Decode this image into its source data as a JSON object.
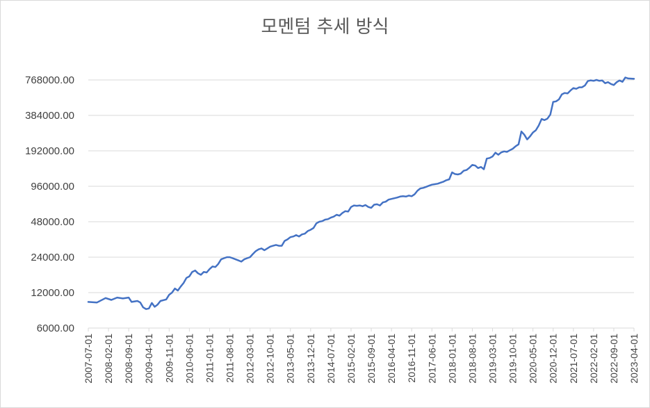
{
  "chart_data": {
    "type": "line",
    "title": "모멘텀 추세 방식",
    "y_scale": "log2",
    "ylim": [
      6000,
      900000
    ],
    "y_ticks": [
      {
        "value": 6000,
        "label": "6000.00"
      },
      {
        "value": 12000,
        "label": "12000.00"
      },
      {
        "value": 24000,
        "label": "24000.00"
      },
      {
        "value": 48000,
        "label": "48000.00"
      },
      {
        "value": 96000,
        "label": "96000.00"
      },
      {
        "value": 192000,
        "label": "192000.00"
      },
      {
        "value": 384000,
        "label": "384000.00"
      },
      {
        "value": 768000,
        "label": "768000.00"
      }
    ],
    "x_tick_labels": [
      "2007-07-01",
      "2008-02-01",
      "2008-09-01",
      "2009-04-01",
      "2009-11-01",
      "2010-06-01",
      "2011-01-01",
      "2011-08-01",
      "2012-03-01",
      "2012-10-01",
      "2013-05-01",
      "2013-12-01",
      "2014-07-01",
      "2015-02-01",
      "2015-09-01",
      "2016-04-01",
      "2016-11-01",
      "2017-06-01",
      "2018-01-01",
      "2018-08-01",
      "2019-03-01",
      "2019-10-01",
      "2020-05-01",
      "2020-12-01",
      "2021-07-01",
      "2022-02-01",
      "2022-09-01",
      "2023-04-01"
    ],
    "gridlines": true,
    "line_color": "#4472c4",
    "series": [
      {
        "points": [
          [
            "2007-07-01",
            10000
          ],
          [
            "2007-10-01",
            9900
          ],
          [
            "2008-01-01",
            10800
          ],
          [
            "2008-03-01",
            10400
          ],
          [
            "2008-05-01",
            10900
          ],
          [
            "2008-07-01",
            10700
          ],
          [
            "2008-09-01",
            10900
          ],
          [
            "2008-10-01",
            10000
          ],
          [
            "2008-12-01",
            10200
          ],
          [
            "2009-01-01",
            9900
          ],
          [
            "2009-02-01",
            9000
          ],
          [
            "2009-03-01",
            8700
          ],
          [
            "2009-04-01",
            8800
          ],
          [
            "2009-05-01",
            9800
          ],
          [
            "2009-06-01",
            9100
          ],
          [
            "2009-07-01",
            9500
          ],
          [
            "2009-08-01",
            10200
          ],
          [
            "2009-10-01",
            10500
          ],
          [
            "2009-11-01",
            11500
          ],
          [
            "2009-12-01",
            12000
          ],
          [
            "2010-01-01",
            13000
          ],
          [
            "2010-02-01",
            12500
          ],
          [
            "2010-03-01",
            13500
          ],
          [
            "2010-04-01",
            14500
          ],
          [
            "2010-05-01",
            16000
          ],
          [
            "2010-06-01",
            16500
          ],
          [
            "2010-07-01",
            18000
          ],
          [
            "2010-08-01",
            18500
          ],
          [
            "2010-09-01",
            17500
          ],
          [
            "2010-10-01",
            17000
          ],
          [
            "2010-11-01",
            18000
          ],
          [
            "2010-12-01",
            17800
          ],
          [
            "2011-01-01",
            19000
          ],
          [
            "2011-02-01",
            20000
          ],
          [
            "2011-03-01",
            19800
          ],
          [
            "2011-04-01",
            21000
          ],
          [
            "2011-05-01",
            23000
          ],
          [
            "2011-06-01",
            23500
          ],
          [
            "2011-07-01",
            24000
          ],
          [
            "2011-08-01",
            24000
          ],
          [
            "2011-09-01",
            23500
          ],
          [
            "2011-10-01",
            23000
          ],
          [
            "2011-11-01",
            22500
          ],
          [
            "2011-12-01",
            22000
          ],
          [
            "2012-01-01",
            23000
          ],
          [
            "2012-02-01",
            23500
          ],
          [
            "2012-03-01",
            24000
          ],
          [
            "2012-04-01",
            25500
          ],
          [
            "2012-05-01",
            27000
          ],
          [
            "2012-06-01",
            28000
          ],
          [
            "2012-07-01",
            28500
          ],
          [
            "2012-08-01",
            27500
          ],
          [
            "2012-09-01",
            28500
          ],
          [
            "2012-10-01",
            29500
          ],
          [
            "2012-11-01",
            30000
          ],
          [
            "2012-12-01",
            30500
          ],
          [
            "2013-01-01",
            30000
          ],
          [
            "2013-02-01",
            30000
          ],
          [
            "2013-03-01",
            33000
          ],
          [
            "2013-04-01",
            34000
          ],
          [
            "2013-05-01",
            35500
          ],
          [
            "2013-06-01",
            36000
          ],
          [
            "2013-07-01",
            37000
          ],
          [
            "2013-08-01",
            36000
          ],
          [
            "2013-09-01",
            37500
          ],
          [
            "2013-10-01",
            38000
          ],
          [
            "2013-11-01",
            40000
          ],
          [
            "2013-12-01",
            41000
          ],
          [
            "2014-01-01",
            42500
          ],
          [
            "2014-02-01",
            46500
          ],
          [
            "2014-03-01",
            48000
          ],
          [
            "2014-04-01",
            48500
          ],
          [
            "2014-05-01",
            50000
          ],
          [
            "2014-06-01",
            50500
          ],
          [
            "2014-07-01",
            52000
          ],
          [
            "2014-08-01",
            53000
          ],
          [
            "2014-09-01",
            55000
          ],
          [
            "2014-10-01",
            54000
          ],
          [
            "2014-11-01",
            57000
          ],
          [
            "2014-12-01",
            59000
          ],
          [
            "2015-01-01",
            58500
          ],
          [
            "2015-02-01",
            64000
          ],
          [
            "2015-03-01",
            66000
          ],
          [
            "2015-04-01",
            65500
          ],
          [
            "2015-05-01",
            66000
          ],
          [
            "2015-06-01",
            65000
          ],
          [
            "2015-07-01",
            66500
          ],
          [
            "2015-08-01",
            64000
          ],
          [
            "2015-09-01",
            63000
          ],
          [
            "2015-10-01",
            67000
          ],
          [
            "2015-11-01",
            67500
          ],
          [
            "2015-12-01",
            66000
          ],
          [
            "2016-01-01",
            70000
          ],
          [
            "2016-02-01",
            71000
          ],
          [
            "2016-03-01",
            74000
          ],
          [
            "2016-04-01",
            75000
          ],
          [
            "2016-05-01",
            76000
          ],
          [
            "2016-06-01",
            77000
          ],
          [
            "2016-07-01",
            78500
          ],
          [
            "2016-08-01",
            79000
          ],
          [
            "2016-09-01",
            78500
          ],
          [
            "2016-10-01",
            80000
          ],
          [
            "2016-11-01",
            79000
          ],
          [
            "2016-12-01",
            82000
          ],
          [
            "2017-01-01",
            88000
          ],
          [
            "2017-02-01",
            92000
          ],
          [
            "2017-03-01",
            93000
          ],
          [
            "2017-04-01",
            95000
          ],
          [
            "2017-05-01",
            97000
          ],
          [
            "2017-06-01",
            99000
          ],
          [
            "2017-07-01",
            100000
          ],
          [
            "2017-08-01",
            101000
          ],
          [
            "2017-09-01",
            103000
          ],
          [
            "2017-10-01",
            105000
          ],
          [
            "2017-11-01",
            108000
          ],
          [
            "2017-12-01",
            110000
          ],
          [
            "2018-01-01",
            126000
          ],
          [
            "2018-02-01",
            122000
          ],
          [
            "2018-03-01",
            121000
          ],
          [
            "2018-04-01",
            123000
          ],
          [
            "2018-05-01",
            130000
          ],
          [
            "2018-06-01",
            132000
          ],
          [
            "2018-07-01",
            138000
          ],
          [
            "2018-08-01",
            146000
          ],
          [
            "2018-09-01",
            144000
          ],
          [
            "2018-10-01",
            137000
          ],
          [
            "2018-11-01",
            140000
          ],
          [
            "2018-12-01",
            134000
          ],
          [
            "2019-01-01",
            165000
          ],
          [
            "2019-02-01",
            167000
          ],
          [
            "2019-03-01",
            172000
          ],
          [
            "2019-04-01",
            185000
          ],
          [
            "2019-05-01",
            178000
          ],
          [
            "2019-06-01",
            186000
          ],
          [
            "2019-07-01",
            190000
          ],
          [
            "2019-08-01",
            188000
          ],
          [
            "2019-09-01",
            194000
          ],
          [
            "2019-10-01",
            200000
          ],
          [
            "2019-11-01",
            210000
          ],
          [
            "2019-12-01",
            218000
          ],
          [
            "2020-01-01",
            280000
          ],
          [
            "2020-02-01",
            263000
          ],
          [
            "2020-03-01",
            240000
          ],
          [
            "2020-04-01",
            255000
          ],
          [
            "2020-05-01",
            275000
          ],
          [
            "2020-06-01",
            287000
          ],
          [
            "2020-07-01",
            315000
          ],
          [
            "2020-08-01",
            358000
          ],
          [
            "2020-09-01",
            350000
          ],
          [
            "2020-10-01",
            360000
          ],
          [
            "2020-11-01",
            390000
          ],
          [
            "2020-12-01",
            500000
          ],
          [
            "2021-01-01",
            505000
          ],
          [
            "2021-02-01",
            525000
          ],
          [
            "2021-03-01",
            580000
          ],
          [
            "2021-04-01",
            595000
          ],
          [
            "2021-05-01",
            590000
          ],
          [
            "2021-06-01",
            625000
          ],
          [
            "2021-07-01",
            655000
          ],
          [
            "2021-08-01",
            645000
          ],
          [
            "2021-09-01",
            665000
          ],
          [
            "2021-10-01",
            665000
          ],
          [
            "2021-11-01",
            690000
          ],
          [
            "2021-12-01",
            750000
          ],
          [
            "2022-01-01",
            762000
          ],
          [
            "2022-02-01",
            755000
          ],
          [
            "2022-03-01",
            768000
          ],
          [
            "2022-04-01",
            755000
          ],
          [
            "2022-05-01",
            760000
          ],
          [
            "2022-06-01",
            720000
          ],
          [
            "2022-07-01",
            735000
          ],
          [
            "2022-08-01",
            710000
          ],
          [
            "2022-09-01",
            695000
          ],
          [
            "2022-10-01",
            735000
          ],
          [
            "2022-11-01",
            760000
          ],
          [
            "2022-12-01",
            740000
          ],
          [
            "2023-01-01",
            805000
          ],
          [
            "2023-02-01",
            790000
          ],
          [
            "2023-04-01",
            785000
          ]
        ]
      }
    ]
  }
}
